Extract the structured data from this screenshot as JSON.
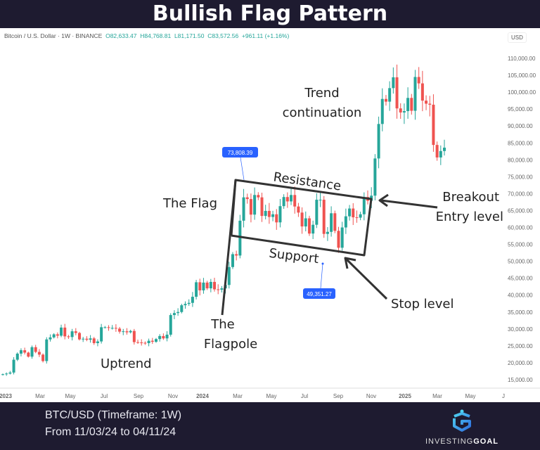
{
  "title": "Bullish Flag Pattern",
  "symbol_info": {
    "name": "Bitcoin / U.S. Dollar · 1W · BINANCE",
    "open": "O82,633.47",
    "high": "H84,768.81",
    "low": "L81,171.50",
    "close": "C83,572.56",
    "change": "+961.11 (+1.16%)"
  },
  "currency": "USD",
  "chart_data": {
    "type": "candlestick",
    "title": "Bullish Flag Pattern",
    "timeframe": "1W",
    "x_tick_labels": [
      "2023",
      "Mar",
      "May",
      "Jul",
      "Sep",
      "Nov",
      "2024",
      "Mar",
      "May",
      "Jul",
      "Sep",
      "Nov",
      "2025",
      "Mar",
      "May",
      "J"
    ],
    "y_tick_labels": [
      "110,000.00",
      "105,000.00",
      "100,000.00",
      "95,000.00",
      "90,000.00",
      "85,000.00",
      "80,000.00",
      "75,000.00",
      "70,000.00",
      "65,000.00",
      "60,000.00",
      "55,000.00",
      "50,000.00",
      "45,000.00",
      "40,000.00",
      "35,000.00",
      "30,000.00",
      "25,000.00",
      "20,000.00",
      "15,000.00"
    ],
    "ylim": [
      13000,
      113000
    ],
    "weekly_close": [
      16.6,
      16.8,
      17.1,
      20.9,
      22.7,
      23.7,
      23.0,
      21.8,
      24.6,
      23.2,
      22.4,
      20.5,
      26.9,
      27.5,
      28.4,
      28.0,
      30.4,
      27.8,
      27.6,
      29.3,
      28.8,
      26.9,
      27.1,
      26.8,
      27.2,
      25.8,
      26.3,
      30.5,
      30.5,
      30.3,
      30.3,
      30.1,
      29.2,
      29.3,
      29.0,
      29.4,
      26.1,
      26.0,
      25.9,
      25.8,
      26.5,
      26.2,
      27.0,
      27.9,
      27.2,
      28.3,
      34.1,
      34.7,
      35.0,
      37.0,
      37.4,
      37.7,
      39.5,
      43.8,
      41.4,
      43.7,
      42.0,
      43.9,
      41.7,
      41.6,
      42.0,
      43.0,
      48.3,
      52.1,
      51.7,
      62.0,
      68.9,
      68.4,
      63.8,
      69.6,
      68.9,
      63.4,
      64.9,
      63.1,
      63.9,
      61.5,
      66.3,
      69.0,
      67.7,
      69.6,
      66.2,
      64.4,
      60.3,
      62.7,
      58.2,
      60.8,
      68.2,
      68.2,
      58.1,
      58.7,
      64.2,
      59.0,
      54.0,
      60.0,
      63.3,
      65.6,
      63.0,
      62.9,
      63.9,
      69.0,
      67.9,
      69.4,
      80.4,
      90.6,
      98.0,
      97.2,
      101.2,
      104.4,
      95.2,
      94.0,
      94.4,
      98.3,
      94.5,
      104.5,
      102.6,
      97.5,
      96.6,
      96.3,
      84.4,
      80.7,
      82.6,
      83.6
    ],
    "price_unit": "thousand USD",
    "colors": {
      "up": "#26a69a",
      "down": "#ef5350",
      "marker": "#2962ff"
    },
    "price_markers": [
      {
        "label": "73,808.39",
        "value": 73808.39
      },
      {
        "label": "49,351.27",
        "value": 49351.27
      }
    ],
    "annotations": {
      "flag": "The Flag",
      "resistance": "Resistance",
      "support": "Support",
      "trend1": "Trend",
      "trend2": "continuation",
      "breakout": "Breakout",
      "entry": "Entry level",
      "stop": "Stop level",
      "pole1": "The",
      "pole2": "Flagpole",
      "uptrend": "Uptrend"
    }
  },
  "footer": {
    "line1": "BTC/USD (Timeframe: 1W)",
    "line2": "From 11/03/24 to 04/11/24",
    "logo_a": "INVESTING",
    "logo_b": "GOAL"
  }
}
